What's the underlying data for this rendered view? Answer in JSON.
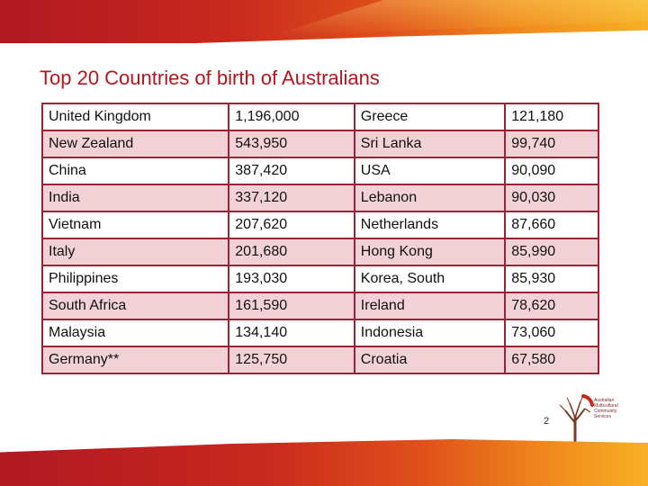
{
  "slide": {
    "title": "Top 20 Countries of birth of Australians",
    "page_number": "2"
  },
  "table": {
    "rows": [
      [
        "United Kingdom",
        "1,196,000",
        "Greece",
        "121,180"
      ],
      [
        "New Zealand",
        "543,950",
        "Sri Lanka",
        "99,740"
      ],
      [
        "China",
        "387,420",
        "USA",
        "90,090"
      ],
      [
        "India",
        "337,120",
        "Lebanon",
        "90,030"
      ],
      [
        "Vietnam",
        "207,620",
        "Netherlands",
        "87,660"
      ],
      [
        "Italy",
        "201,680",
        "Hong Kong",
        "85,990"
      ],
      [
        "Philippines",
        "193,030",
        "Korea, South",
        "85,930"
      ],
      [
        "South Africa",
        "161,590",
        "Ireland",
        "78,620"
      ],
      [
        "Malaysia",
        "134,140",
        "Indonesia",
        "73,060"
      ],
      [
        "Germany**",
        "125,750",
        "Croatia",
        "67,580"
      ]
    ]
  },
  "logo": {
    "icon": "tree-icon",
    "lines": [
      "Australian",
      "Multicultural",
      "Community",
      "Services"
    ]
  },
  "colors": {
    "title": "#b5161e",
    "table_border": "#9b2335",
    "row_alt": "#f2d2d6",
    "band_start": "#b01822",
    "band_end": "#f6b024"
  }
}
